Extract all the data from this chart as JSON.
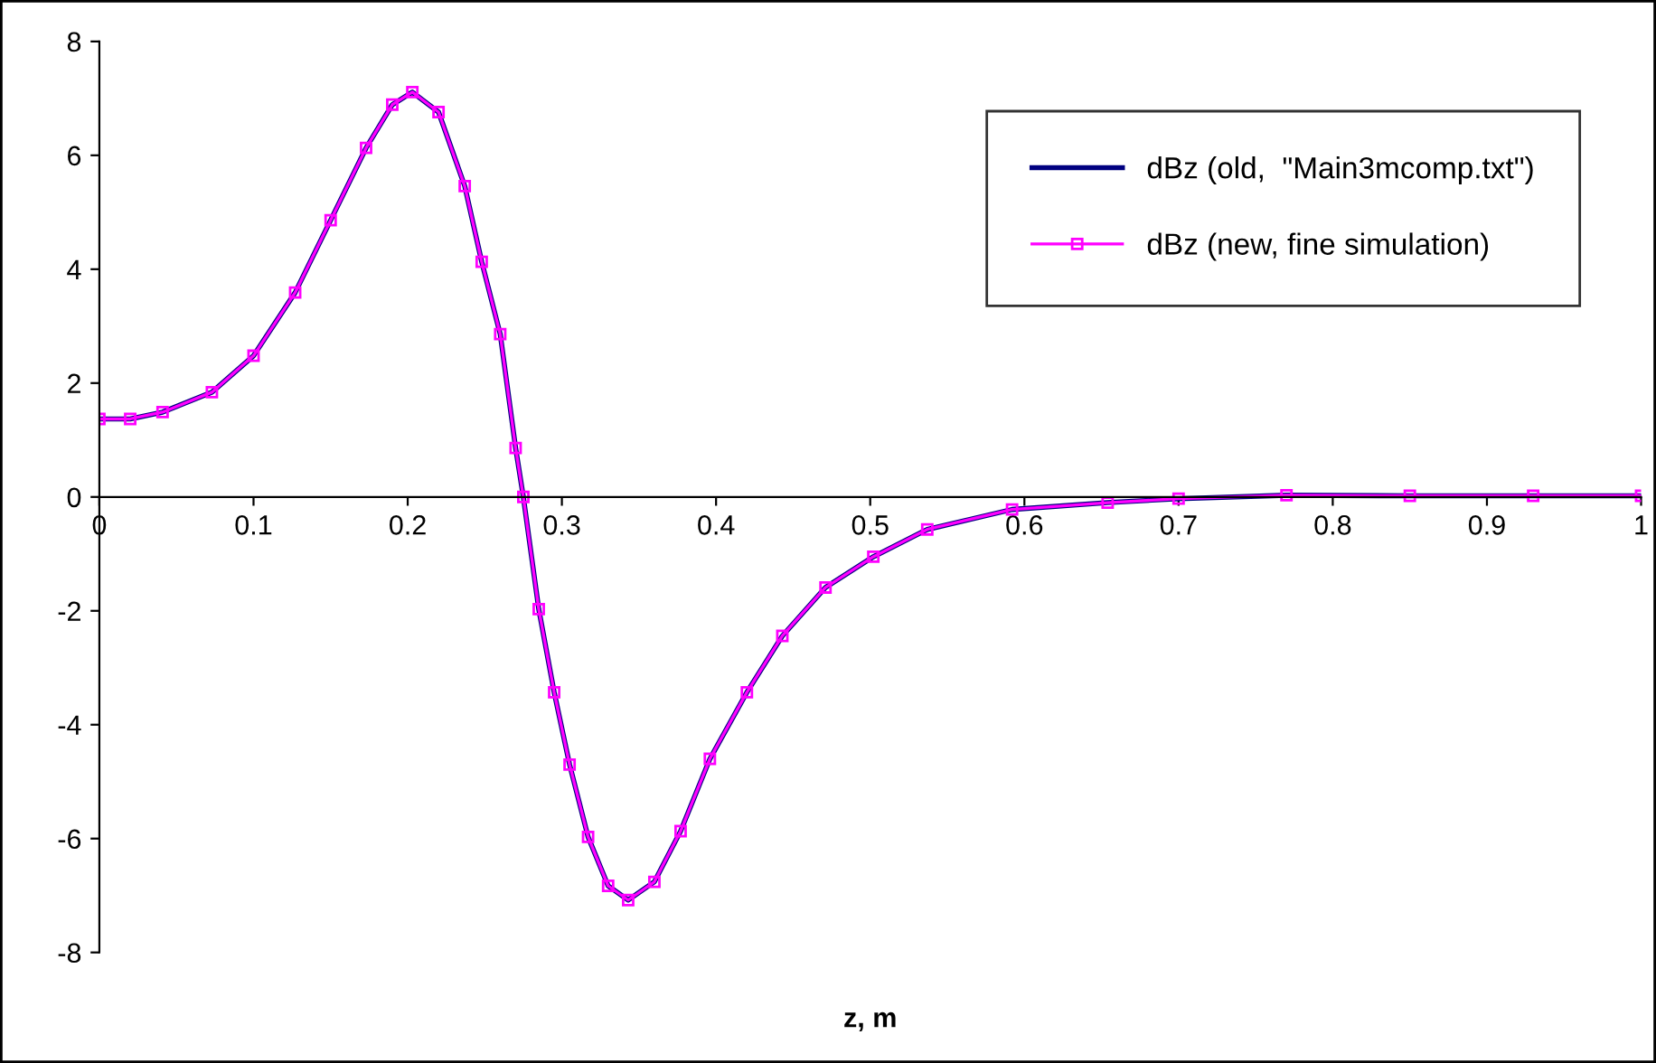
{
  "chart_data": {
    "type": "line",
    "xlabel": "z, m",
    "xlim": [
      0,
      1
    ],
    "ylim": [
      -8,
      8
    ],
    "xticks": [
      0,
      0.1,
      0.2,
      0.3,
      0.4,
      0.5,
      0.6,
      0.7,
      0.8,
      0.9,
      1
    ],
    "yticks": [
      -8,
      -6,
      -4,
      -2,
      0,
      2,
      4,
      6,
      8
    ],
    "grid": false,
    "legend": "top right",
    "x": [
      0,
      0.02,
      0.041,
      0.073,
      0.1,
      0.127,
      0.15,
      0.173,
      0.19,
      0.203,
      0.22,
      0.237,
      0.248,
      0.26,
      0.27,
      0.275,
      0.285,
      0.295,
      0.305,
      0.317,
      0.33,
      0.343,
      0.36,
      0.377,
      0.396,
      0.42,
      0.443,
      0.471,
      0.502,
      0.537,
      0.592,
      0.654,
      0.7,
      0.77,
      0.85,
      0.93,
      1
    ],
    "series": [
      {
        "name": "dBz (old,  \"Main3mcomp.txt\")",
        "color": "#000080",
        "marker": "none",
        "values": [
          1.37,
          1.37,
          1.49,
          1.84,
          2.48,
          3.59,
          4.86,
          6.13,
          6.89,
          7.11,
          6.76,
          5.46,
          4.13,
          2.86,
          0.86,
          0,
          -1.97,
          -3.43,
          -4.7,
          -5.97,
          -6.83,
          -7.08,
          -6.76,
          -5.87,
          -4.6,
          -3.43,
          -2.44,
          -1.59,
          -1.05,
          -0.57,
          -0.22,
          -0.1,
          -0.03,
          0.03,
          0.02,
          0.02,
          0.02
        ]
      },
      {
        "name": "dBz (new, fine simulation)",
        "color": "#ff00ff",
        "marker": "square",
        "values": [
          1.37,
          1.37,
          1.49,
          1.84,
          2.48,
          3.59,
          4.86,
          6.13,
          6.89,
          7.11,
          6.76,
          5.46,
          4.13,
          2.86,
          0.86,
          0,
          -1.97,
          -3.43,
          -4.7,
          -5.97,
          -6.83,
          -7.08,
          -6.76,
          -5.87,
          -4.6,
          -3.43,
          -2.44,
          -1.59,
          -1.05,
          -0.57,
          -0.22,
          -0.1,
          -0.03,
          0.03,
          0.02,
          0.02,
          0.02
        ]
      }
    ]
  }
}
